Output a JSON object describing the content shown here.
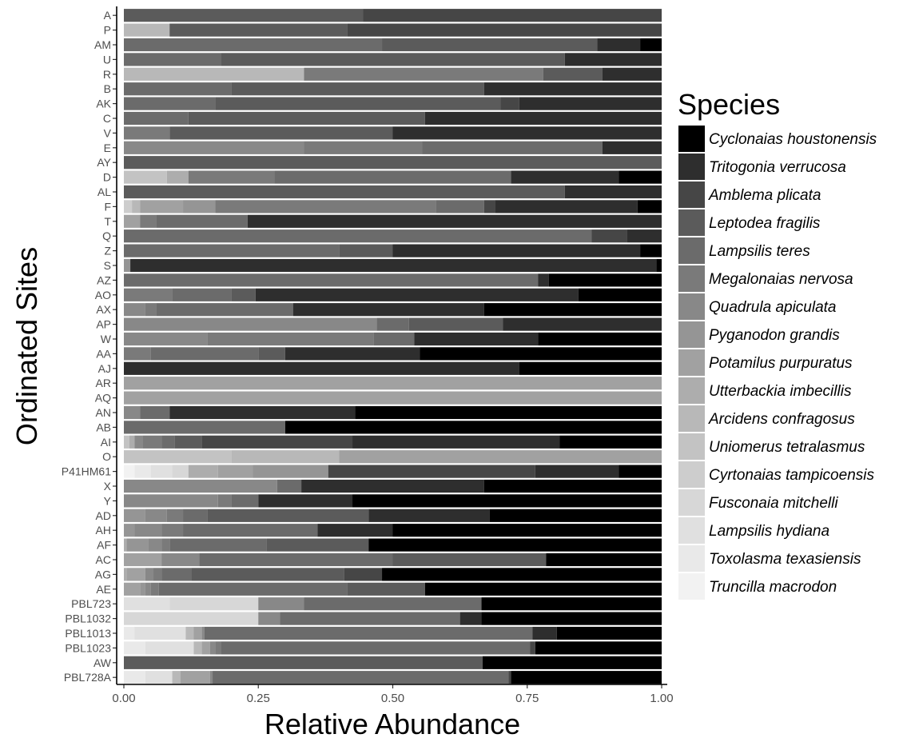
{
  "chart_data": {
    "type": "bar",
    "orientation": "horizontal",
    "stacked": true,
    "title": "",
    "xlabel": "Relative Abundance",
    "ylabel": "Ordinated Sites",
    "xlim": [
      0,
      1
    ],
    "xticks": [
      "0.00",
      "0.25",
      "0.50",
      "0.75",
      "1.00"
    ],
    "grid": false,
    "legend": {
      "title": "Species",
      "placement": "right",
      "entries": [
        {
          "name": "Cyclonaias houstonensis",
          "color": "#000000"
        },
        {
          "name": "Tritogonia verrucosa",
          "color": "#2e2e2e"
        },
        {
          "name": "Amblema plicata",
          "color": "#464646"
        },
        {
          "name": "Leptodea fragilis",
          "color": "#5b5b5b"
        },
        {
          "name": "Lampsilis teres",
          "color": "#6b6b6b"
        },
        {
          "name": "Megalonaias nervosa",
          "color": "#7a7a7a"
        },
        {
          "name": "Quadrula apiculata",
          "color": "#888888"
        },
        {
          "name": "Pyganodon grandis",
          "color": "#959595"
        },
        {
          "name": "Potamilus purpuratus",
          "color": "#a1a1a1"
        },
        {
          "name": "Utterbackia imbecillis",
          "color": "#adadad"
        },
        {
          "name": "Arcidens confragosus",
          "color": "#b8b8b8"
        },
        {
          "name": "Uniomerus tetralasmus",
          "color": "#c3c3c3"
        },
        {
          "name": "Cyrtonaias tampicoensis",
          "color": "#cdcdcd"
        },
        {
          "name": "Fusconaia mitchelli",
          "color": "#d7d7d7"
        },
        {
          "name": "Lampsilis hydiana",
          "color": "#e0e0e0"
        },
        {
          "name": "Toxolasma texasiensis",
          "color": "#e9e9e9"
        },
        {
          "name": "Truncilla macrodon",
          "color": "#f2f2f2"
        }
      ]
    },
    "rows": [
      {
        "site": "A",
        "segments": [
          [
            3,
            0.445
          ],
          [
            2,
            0.555
          ]
        ]
      },
      {
        "site": "P",
        "segments": [
          [
            10,
            0.085
          ],
          [
            3,
            0.33
          ],
          [
            2,
            0.585
          ]
        ]
      },
      {
        "site": "AM",
        "segments": [
          [
            4,
            0.48
          ],
          [
            3,
            0.4
          ],
          [
            1,
            0.08
          ],
          [
            0,
            0.04
          ]
        ]
      },
      {
        "site": "U",
        "segments": [
          [
            4,
            0.18
          ],
          [
            3,
            0.64
          ],
          [
            1,
            0.18
          ]
        ]
      },
      {
        "site": "R",
        "segments": [
          [
            10,
            0.335
          ],
          [
            5,
            0.445
          ],
          [
            3,
            0.11
          ],
          [
            1,
            0.11
          ]
        ]
      },
      {
        "site": "B",
        "segments": [
          [
            4,
            0.2
          ],
          [
            3,
            0.47
          ],
          [
            1,
            0.33
          ]
        ]
      },
      {
        "site": "AK",
        "segments": [
          [
            4,
            0.17
          ],
          [
            3,
            0.53
          ],
          [
            2,
            0.035
          ],
          [
            1,
            0.265
          ]
        ]
      },
      {
        "site": "C",
        "segments": [
          [
            4,
            0.12
          ],
          [
            3,
            0.44
          ],
          [
            1,
            0.44
          ]
        ]
      },
      {
        "site": "V",
        "segments": [
          [
            5,
            0.085
          ],
          [
            3,
            0.415
          ],
          [
            1,
            0.5
          ]
        ]
      },
      {
        "site": "E",
        "segments": [
          [
            6,
            0.335
          ],
          [
            5,
            0.22
          ],
          [
            4,
            0.335
          ],
          [
            1,
            0.11
          ]
        ]
      },
      {
        "site": "AY",
        "segments": [
          [
            3,
            1.0
          ]
        ]
      },
      {
        "site": "D",
        "segments": [
          [
            11,
            0.08
          ],
          [
            9,
            0.04
          ],
          [
            5,
            0.16
          ],
          [
            4,
            0.44
          ],
          [
            1,
            0.2
          ],
          [
            0,
            0.08
          ]
        ]
      },
      {
        "site": "AL",
        "segments": [
          [
            3,
            0.82
          ],
          [
            1,
            0.18
          ]
        ]
      },
      {
        "site": "F",
        "segments": [
          [
            12,
            0.015
          ],
          [
            10,
            0.015
          ],
          [
            8,
            0.08
          ],
          [
            7,
            0.06
          ],
          [
            5,
            0.41
          ],
          [
            4,
            0.09
          ],
          [
            2,
            0.02
          ],
          [
            1,
            0.265
          ],
          [
            0,
            0.045
          ]
        ]
      },
      {
        "site": "T",
        "segments": [
          [
            8,
            0.03
          ],
          [
            5,
            0.03
          ],
          [
            4,
            0.17
          ],
          [
            1,
            0.77
          ]
        ]
      },
      {
        "site": "Q",
        "segments": [
          [
            4,
            0.87
          ],
          [
            2,
            0.065
          ],
          [
            1,
            0.065
          ]
        ]
      },
      {
        "site": "Z",
        "segments": [
          [
            4,
            0.4
          ],
          [
            3,
            0.1
          ],
          [
            1,
            0.46
          ],
          [
            0,
            0.04
          ]
        ]
      },
      {
        "site": "S",
        "segments": [
          [
            7,
            0.012
          ],
          [
            1,
            0.978
          ],
          [
            0,
            0.01
          ]
        ]
      },
      {
        "site": "AZ",
        "segments": [
          [
            4,
            0.77
          ],
          [
            1,
            0.02
          ],
          [
            0,
            0.21
          ]
        ]
      },
      {
        "site": "AO",
        "segments": [
          [
            5,
            0.09
          ],
          [
            4,
            0.11
          ],
          [
            3,
            0.045
          ],
          [
            1,
            0.6
          ],
          [
            0,
            0.155
          ]
        ]
      },
      {
        "site": "AX",
        "segments": [
          [
            6,
            0.04
          ],
          [
            5,
            0.02
          ],
          [
            4,
            0.255
          ],
          [
            1,
            0.355
          ],
          [
            0,
            0.33
          ]
        ]
      },
      {
        "site": "AP",
        "segments": [
          [
            6,
            0.47
          ],
          [
            4,
            0.06
          ],
          [
            3,
            0.175
          ],
          [
            1,
            0.295
          ]
        ]
      },
      {
        "site": "W",
        "segments": [
          [
            6,
            0.155
          ],
          [
            5,
            0.31
          ],
          [
            4,
            0.075
          ],
          [
            1,
            0.23
          ],
          [
            0,
            0.23
          ]
        ]
      },
      {
        "site": "AA",
        "segments": [
          [
            5,
            0.05
          ],
          [
            4,
            0.2
          ],
          [
            3,
            0.05
          ],
          [
            1,
            0.25
          ],
          [
            0,
            0.45
          ]
        ]
      },
      {
        "site": "AJ",
        "segments": [
          [
            1,
            0.735
          ],
          [
            0,
            0.265
          ]
        ]
      },
      {
        "site": "AR",
        "segments": [
          [
            8,
            1.0
          ]
        ]
      },
      {
        "site": "AQ",
        "segments": [
          [
            8,
            1.0
          ]
        ]
      },
      {
        "site": "AN",
        "segments": [
          [
            6,
            0.03
          ],
          [
            4,
            0.055
          ],
          [
            1,
            0.345
          ],
          [
            0,
            0.57
          ]
        ]
      },
      {
        "site": "AB",
        "segments": [
          [
            4,
            0.3
          ],
          [
            0,
            0.7
          ]
        ]
      },
      {
        "site": "AI",
        "segments": [
          [
            11,
            0.01
          ],
          [
            9,
            0.01
          ],
          [
            6,
            0.015
          ],
          [
            5,
            0.035
          ],
          [
            4,
            0.025
          ],
          [
            3,
            0.05
          ],
          [
            2,
            0.28
          ],
          [
            1,
            0.385
          ],
          [
            0,
            0.19
          ]
        ]
      },
      {
        "site": "O",
        "segments": [
          [
            11,
            0.2
          ],
          [
            10,
            0.2
          ],
          [
            8,
            0.6
          ]
        ]
      },
      {
        "site": "P41HM61",
        "segments": [
          [
            16,
            0.02
          ],
          [
            15,
            0.03
          ],
          [
            14,
            0.04
          ],
          [
            13,
            0.03
          ],
          [
            9,
            0.055
          ],
          [
            8,
            0.065
          ],
          [
            7,
            0.14
          ],
          [
            2,
            0.385
          ],
          [
            1,
            0.155
          ],
          [
            0,
            0.08
          ]
        ]
      },
      {
        "site": "X",
        "segments": [
          [
            6,
            0.285
          ],
          [
            4,
            0.045
          ],
          [
            1,
            0.34
          ],
          [
            0,
            0.33
          ]
        ]
      },
      {
        "site": "Y",
        "segments": [
          [
            6,
            0.175
          ],
          [
            5,
            0.025
          ],
          [
            4,
            0.05
          ],
          [
            1,
            0.175
          ],
          [
            0,
            0.575
          ]
        ]
      },
      {
        "site": "AD",
        "segments": [
          [
            7,
            0.04
          ],
          [
            6,
            0.04
          ],
          [
            5,
            0.03
          ],
          [
            4,
            0.045
          ],
          [
            3,
            0.3
          ],
          [
            1,
            0.225
          ],
          [
            0,
            0.32
          ]
        ]
      },
      {
        "site": "AH",
        "segments": [
          [
            7,
            0.02
          ],
          [
            6,
            0.05
          ],
          [
            5,
            0.04
          ],
          [
            4,
            0.25
          ],
          [
            1,
            0.14
          ],
          [
            0,
            0.5
          ]
        ]
      },
      {
        "site": "AF",
        "segments": [
          [
            9,
            0.005
          ],
          [
            7,
            0.04
          ],
          [
            6,
            0.025
          ],
          [
            5,
            0.015
          ],
          [
            4,
            0.18
          ],
          [
            3,
            0.19
          ],
          [
            0,
            0.545
          ]
        ]
      },
      {
        "site": "AC",
        "segments": [
          [
            8,
            0.07
          ],
          [
            6,
            0.07
          ],
          [
            4,
            0.36
          ],
          [
            3,
            0.285
          ],
          [
            0,
            0.215
          ]
        ]
      },
      {
        "site": "AG",
        "segments": [
          [
            9,
            0.005
          ],
          [
            8,
            0.035
          ],
          [
            6,
            0.015
          ],
          [
            5,
            0.015
          ],
          [
            4,
            0.055
          ],
          [
            3,
            0.285
          ],
          [
            2,
            0.07
          ],
          [
            0,
            0.52
          ]
        ]
      },
      {
        "site": "AE",
        "segments": [
          [
            8,
            0.03
          ],
          [
            7,
            0.01
          ],
          [
            6,
            0.01
          ],
          [
            5,
            0.015
          ],
          [
            4,
            0.35
          ],
          [
            3,
            0.145
          ],
          [
            0,
            0.44
          ]
        ]
      },
      {
        "site": "PBL723",
        "segments": [
          [
            14,
            0.085
          ],
          [
            13,
            0.165
          ],
          [
            6,
            0.085
          ],
          [
            4,
            0.33
          ],
          [
            0,
            0.335
          ]
        ]
      },
      {
        "site": "PBL1032",
        "segments": [
          [
            13,
            0.25
          ],
          [
            6,
            0.04
          ],
          [
            4,
            0.335
          ],
          [
            1,
            0.04
          ],
          [
            0,
            0.335
          ]
        ]
      },
      {
        "site": "PBL1013",
        "segments": [
          [
            15,
            0.02
          ],
          [
            14,
            0.095
          ],
          [
            10,
            0.015
          ],
          [
            8,
            0.015
          ],
          [
            6,
            0.005
          ],
          [
            4,
            0.61
          ],
          [
            1,
            0.045
          ],
          [
            0,
            0.195
          ]
        ]
      },
      {
        "site": "PBL1023",
        "segments": [
          [
            15,
            0.04
          ],
          [
            14,
            0.09
          ],
          [
            10,
            0.015
          ],
          [
            8,
            0.015
          ],
          [
            6,
            0.01
          ],
          [
            5,
            0.01
          ],
          [
            4,
            0.575
          ],
          [
            2,
            0.01
          ],
          [
            0,
            0.235
          ]
        ]
      },
      {
        "site": "AW",
        "segments": [
          [
            3,
            0.667
          ],
          [
            0,
            0.333
          ]
        ]
      },
      {
        "site": "PBL728A",
        "segments": [
          [
            15,
            0.04
          ],
          [
            14,
            0.05
          ],
          [
            10,
            0.015
          ],
          [
            8,
            0.055
          ],
          [
            6,
            0.005
          ],
          [
            4,
            0.55
          ],
          [
            2,
            0.005
          ],
          [
            0,
            0.28
          ]
        ]
      }
    ]
  }
}
